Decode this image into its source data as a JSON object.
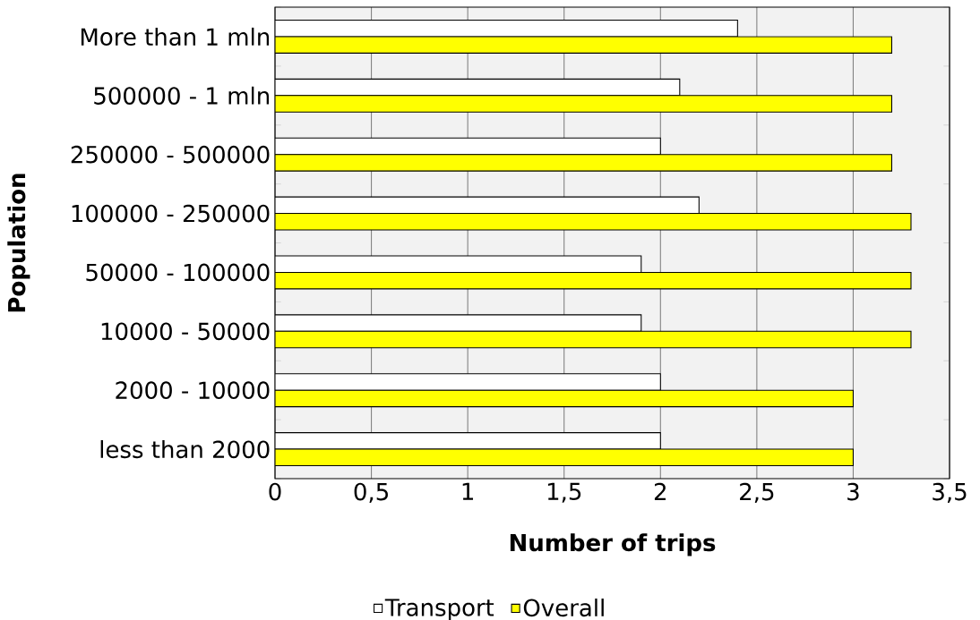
{
  "chart_data": {
    "type": "bar",
    "orientation": "horizontal",
    "xlabel": "Number of trips",
    "ylabel": "Population",
    "categories": [
      "More than 1 mln",
      "500000 - 1 mln",
      "250000 - 500000",
      "100000 - 250000",
      "50000 - 100000",
      "10000 - 50000",
      "2000 - 10000",
      "less than 2000"
    ],
    "series": [
      {
        "name": "Transport",
        "color": "#ffffff",
        "values": [
          2.4,
          2.1,
          2.0,
          2.2,
          1.9,
          1.9,
          2.0,
          2.0
        ]
      },
      {
        "name": "Overall",
        "color": "#ffff00",
        "values": [
          3.2,
          3.2,
          3.2,
          3.3,
          3.3,
          3.3,
          3.0,
          3.0
        ]
      }
    ],
    "xlim": [
      0,
      3.5
    ],
    "xticks": [
      0,
      {
        "value": 0.5,
        "label": "0,5"
      },
      1,
      {
        "value": 1.5,
        "label": "1,5"
      },
      2,
      {
        "value": 2.5,
        "label": "2,5"
      },
      3,
      {
        "value": 3.5,
        "label": "3,5"
      }
    ],
    "grid": "x",
    "legend": "bottom"
  }
}
